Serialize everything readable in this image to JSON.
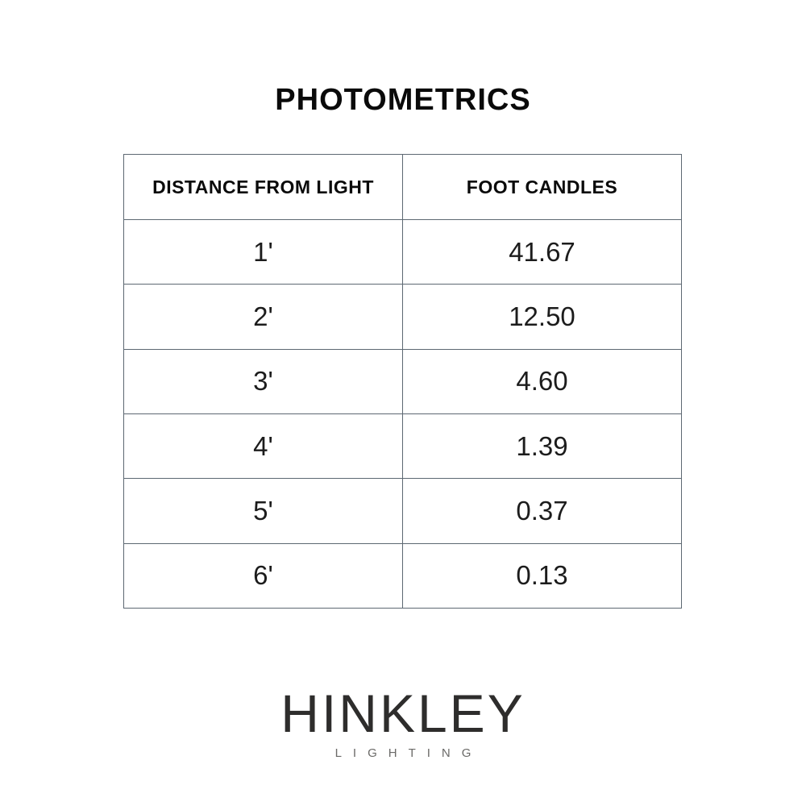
{
  "title": "PHOTOMETRICS",
  "chart_data": {
    "type": "table",
    "title": "PHOTOMETRICS",
    "columns": [
      "DISTANCE FROM LIGHT",
      "FOOT CANDLES"
    ],
    "rows": [
      [
        "1'",
        "41.67"
      ],
      [
        "2'",
        "12.50"
      ],
      [
        "3'",
        "4.60"
      ],
      [
        "4'",
        "1.39"
      ],
      [
        "5'",
        "0.37"
      ],
      [
        "6'",
        "0.13"
      ]
    ],
    "layout_hints": {
      "header_bold": true,
      "grid": "all-borders",
      "alignment": "center"
    }
  },
  "logo": {
    "brand": "HINKLEY",
    "tagline": "LIGHTING"
  },
  "colors": {
    "background": "#ffffff",
    "table_border": "#5d6872",
    "title_text": "#0a0a0a",
    "cell_text": "#1c1c1c",
    "logo_brand": "#2e2d2c",
    "logo_tagline": "#6b6a68"
  }
}
